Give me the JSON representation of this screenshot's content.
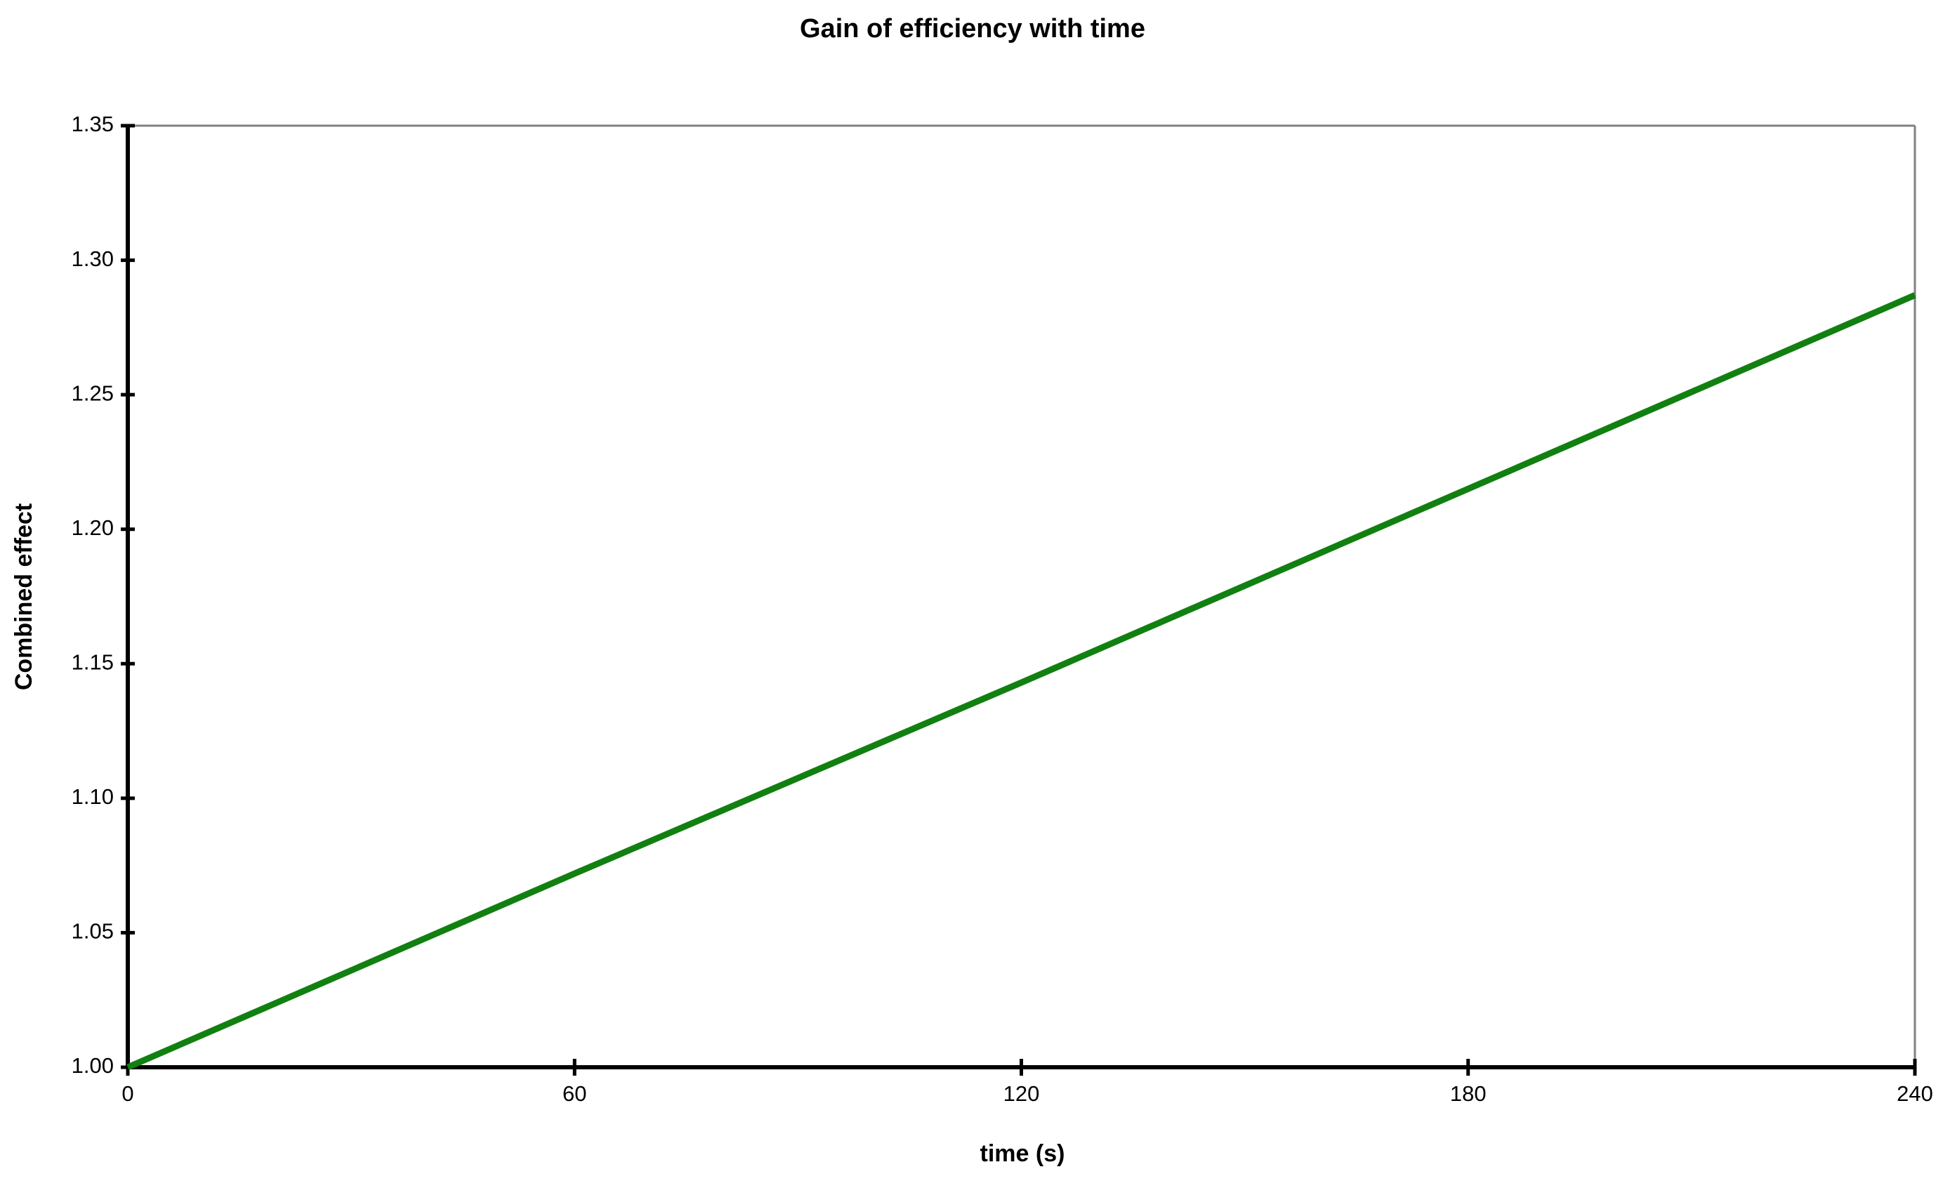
{
  "chart_data": {
    "type": "line",
    "title": "Gain of efficiency with time",
    "x_label": "time (s)",
    "y_label": "Combined effect",
    "x": [
      0,
      60,
      120,
      180,
      240
    ],
    "series": [
      {
        "name": "Combined effect",
        "color": "#118011",
        "values": [
          1.0,
          1.072,
          1.143,
          1.215,
          1.287
        ]
      }
    ],
    "xlim": [
      0,
      240
    ],
    "xticks": [
      0,
      60,
      120,
      180,
      240
    ],
    "ylim": [
      1.0,
      1.35
    ],
    "yticks": [
      {
        "value": 1.0,
        "label": "1.00"
      },
      {
        "value": 1.05,
        "label": "1.05"
      },
      {
        "value": 1.1,
        "label": "1.10"
      },
      {
        "value": 1.15,
        "label": "1.15"
      },
      {
        "value": 1.2,
        "label": "1.20"
      },
      {
        "value": 1.25,
        "label": "1.25"
      },
      {
        "value": 1.3,
        "label": "1.30"
      },
      {
        "value": 1.35,
        "label": "1.35"
      }
    ]
  }
}
